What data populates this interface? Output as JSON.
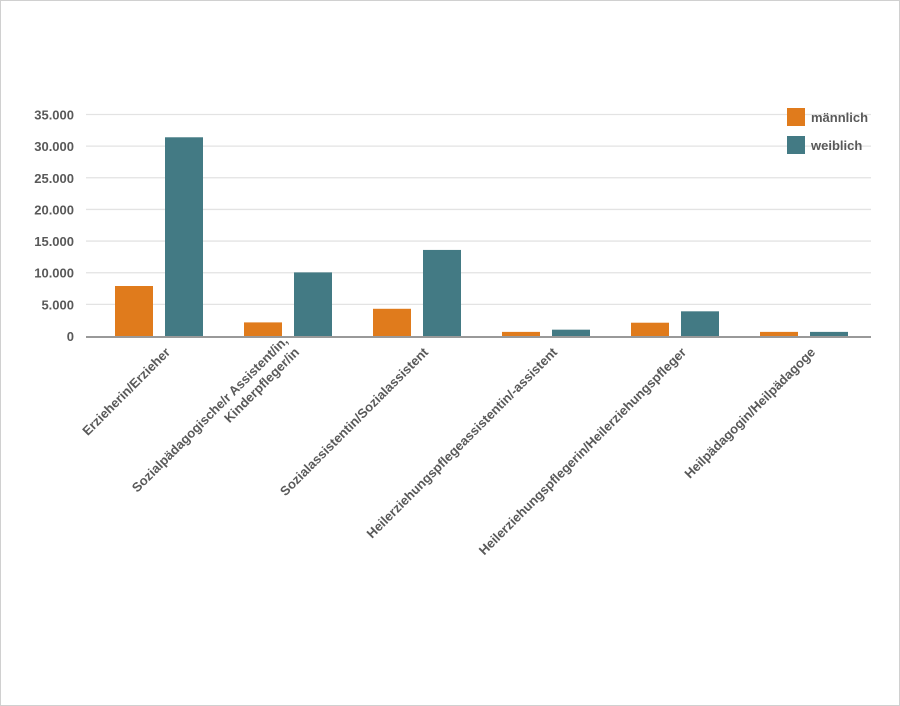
{
  "chart_data": {
    "type": "bar",
    "categories": [
      [
        "Erzieherin/Erzieher"
      ],
      [
        "Sozialpädagogische/r Assistent/in,",
        "Kinderpfleger/in"
      ],
      [
        "Sozialassistentin/Sozialassistent"
      ],
      [
        "Heilerziehungspflegeassistentin/-assistent"
      ],
      [
        "Heilerziehungspflegerin/Heilerziehungspfleger"
      ],
      [
        "Heilpädagogin/Heilpädagoge"
      ]
    ],
    "series": [
      {
        "name": "männlich",
        "color": "#E07B1C",
        "values": [
          7900,
          2150,
          4300,
          650,
          2100,
          650
        ]
      },
      {
        "name": "weiblich",
        "color": "#437A84",
        "values": [
          31400,
          10050,
          13600,
          1000,
          3900,
          650
        ]
      }
    ],
    "yticks": [
      "0",
      "5.000",
      "10.000",
      "15.000",
      "20.000",
      "25.000",
      "30.000",
      "35.000"
    ],
    "ylim": [
      0,
      35000
    ],
    "grid": true,
    "legend": "top-right",
    "xlabel": "",
    "ylabel": "",
    "title": ""
  }
}
